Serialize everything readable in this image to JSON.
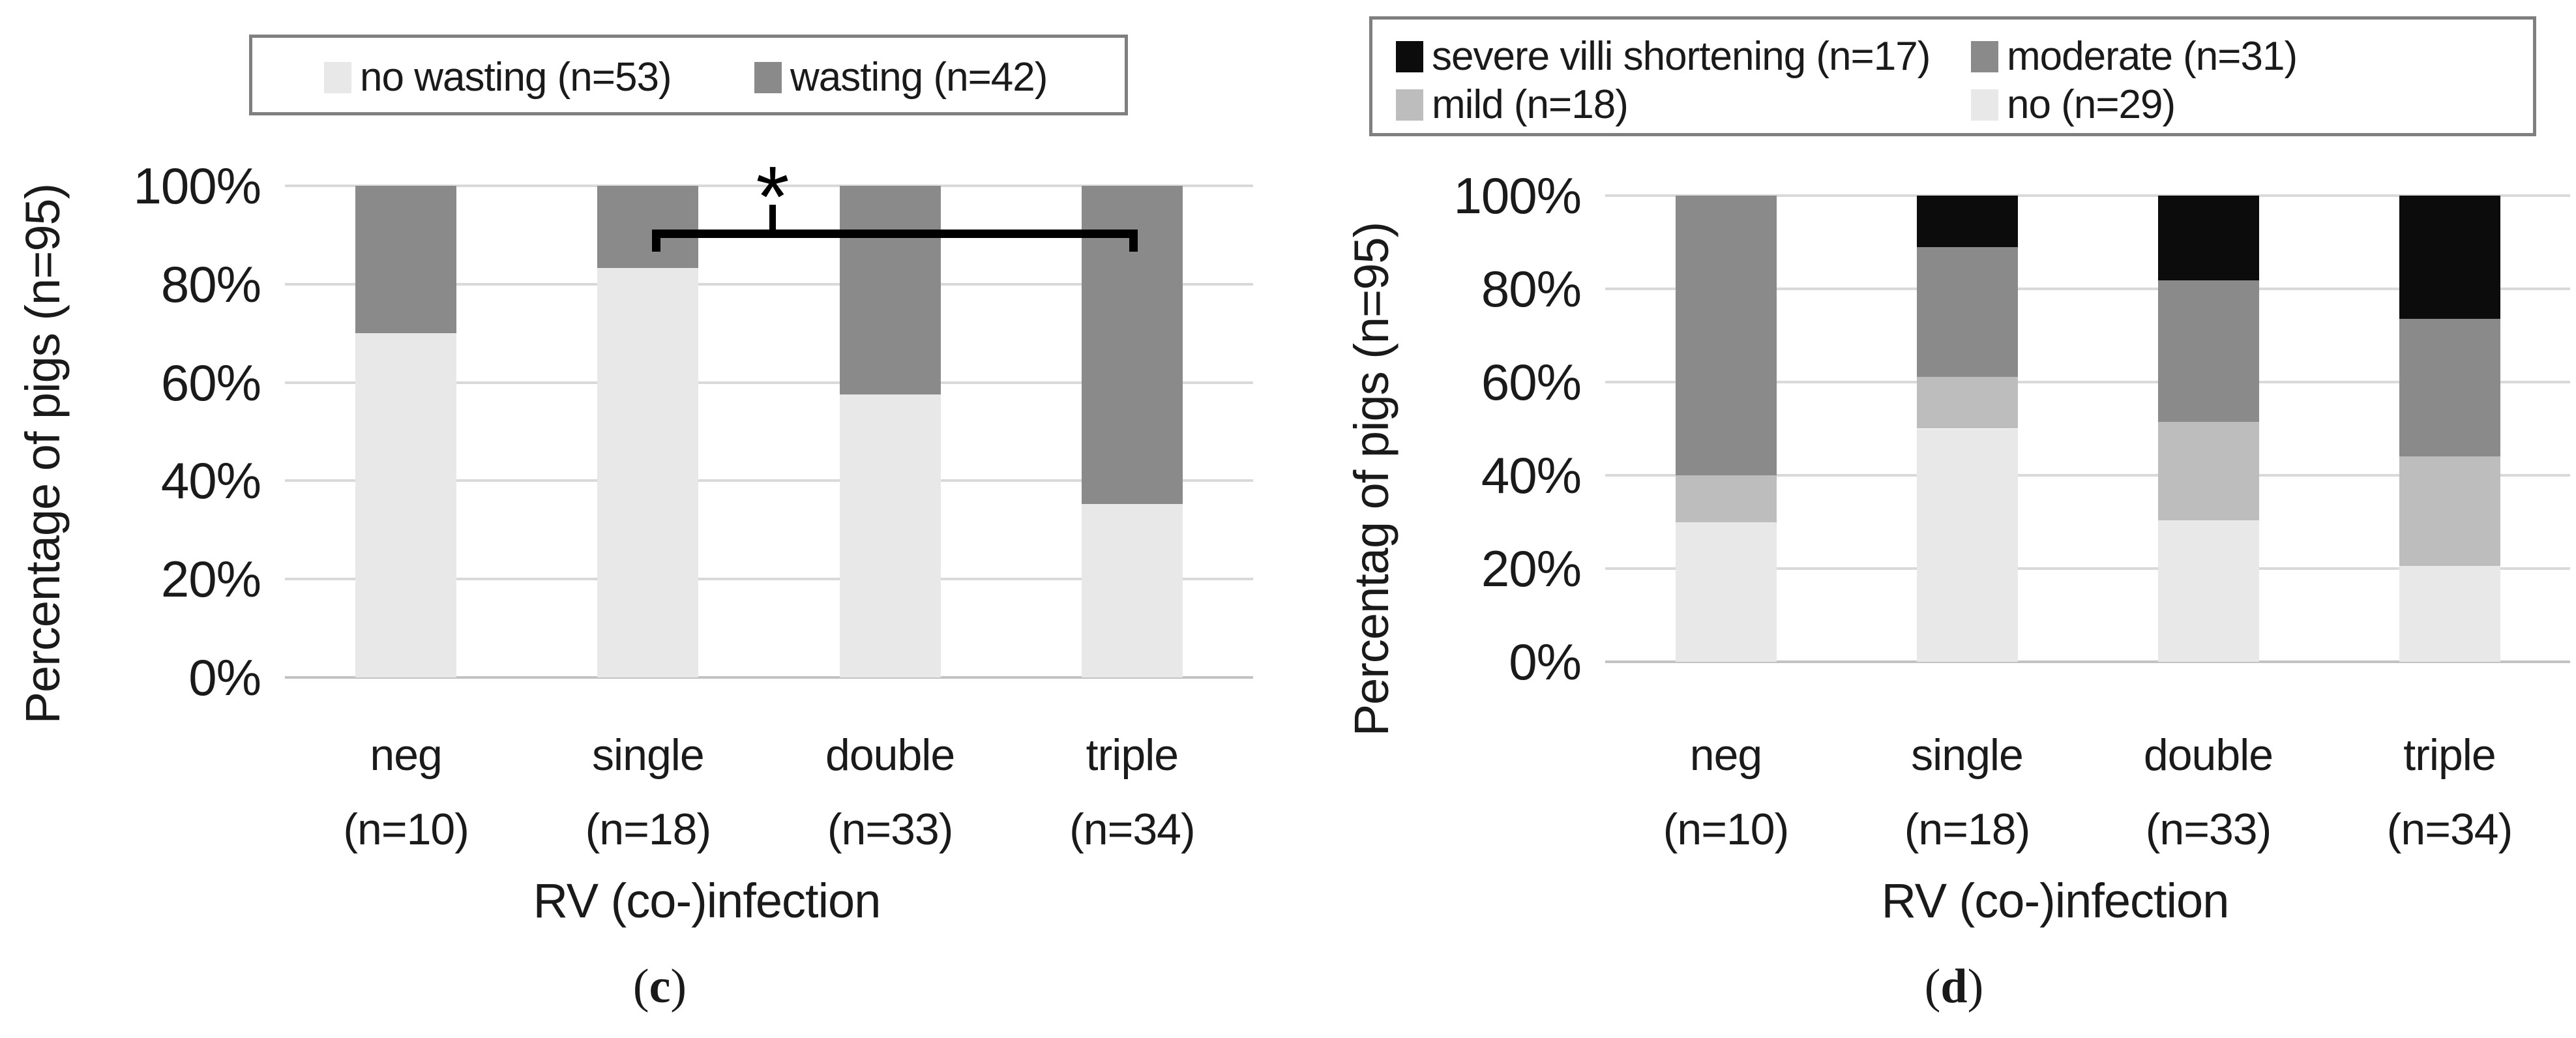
{
  "figure": {
    "captions": [
      {
        "open": "(",
        "letter": "c",
        "close": ")"
      },
      {
        "open": "(",
        "letter": "d",
        "close": ")"
      }
    ],
    "colors": {
      "light_gray": "#e8e8e8",
      "mid_gray": "#bdbdbd",
      "dark_gray": "#8a8a8a",
      "black": "#0c0c0c",
      "gridline": "#d9d9d9",
      "axis_line": "#c2c2c2",
      "legend_border": "#7f7f7f",
      "text": "#1a1a1a",
      "annotation": "#000000"
    }
  },
  "chart_data": [
    {
      "id": "c",
      "type": "bar",
      "stacked": true,
      "units": "percent",
      "title": "",
      "ylabel": "Percentage of pigs (n=95)",
      "xlabel": "RV (co-)infection",
      "ylim": [
        0,
        100
      ],
      "grid": true,
      "legend_position": "top",
      "yticks": [
        "0%",
        "20%",
        "40%",
        "60%",
        "80%",
        "100%"
      ],
      "categories": [
        "neg",
        "single",
        "double",
        "triple"
      ],
      "category_sublabels": [
        "(n=10)",
        "(n=18)",
        "(n=33)",
        "(n=34)"
      ],
      "series": [
        {
          "name": "no wasting (n=53)",
          "color_key": "light_gray",
          "values": [
            70,
            83.3,
            57.6,
            35.3
          ]
        },
        {
          "name": "wasting (n=42)",
          "color_key": "dark_gray",
          "values": [
            30,
            16.7,
            42.4,
            64.7
          ]
        }
      ],
      "legend_series_order": [
        0,
        1
      ],
      "annotation": {
        "symbol": "*",
        "from_category": "single",
        "to_category": "triple",
        "level_pct": 91
      }
    },
    {
      "id": "d",
      "type": "bar",
      "stacked": true,
      "units": "percent",
      "title": "",
      "ylabel": "Percentag of pigs (n=95)",
      "xlabel": "RV (co-)infection",
      "ylim": [
        0,
        100
      ],
      "grid": true,
      "legend_position": "top",
      "yticks": [
        "0%",
        "20%",
        "40%",
        "60%",
        "80%",
        "100%"
      ],
      "categories": [
        "neg",
        "single",
        "double",
        "triple"
      ],
      "category_sublabels": [
        "(n=10)",
        "(n=18)",
        "(n=33)",
        "(n=34)"
      ],
      "series": [
        {
          "name": "no (n=29)",
          "color_key": "light_gray",
          "values": [
            30,
            50,
            30.3,
            20.6
          ]
        },
        {
          "name": "mild (n=18)",
          "color_key": "mid_gray",
          "values": [
            10,
            11.1,
            21.2,
            23.5
          ]
        },
        {
          "name": "moderate (n=31)",
          "color_key": "dark_gray",
          "values": [
            60,
            27.8,
            30.3,
            29.4
          ]
        },
        {
          "name": "severe villi shortening (n=17)",
          "color_key": "black",
          "values": [
            0,
            11.1,
            18.2,
            26.5
          ]
        }
      ],
      "legend_series_order": [
        3,
        2,
        1,
        0
      ]
    }
  ]
}
